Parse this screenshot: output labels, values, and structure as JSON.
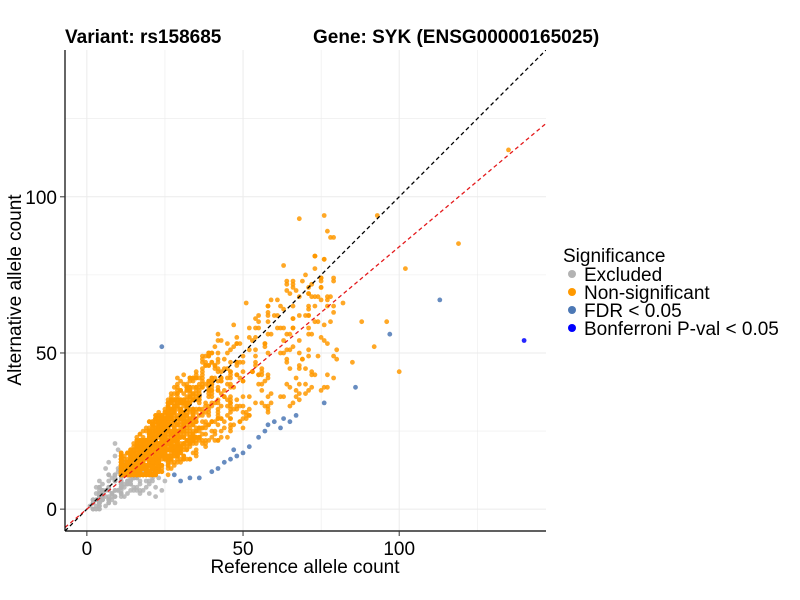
{
  "chart_data": {
    "type": "scatter",
    "title_left": "Variant: rs158685",
    "title_right": "Gene: SYK (ENSG00000165025)",
    "xlabel": "Reference allele count",
    "ylabel": "Alternative allele count",
    "xlim": [
      -7,
      147
    ],
    "ylim": [
      -7,
      147
    ],
    "xticks": [
      0,
      50,
      100
    ],
    "yticks": [
      0,
      50,
      100
    ],
    "grid": true,
    "reference_lines": [
      {
        "name": "identity line",
        "slope": 1,
        "intercept": 0,
        "color": "#000000",
        "style": "dashed"
      },
      {
        "name": "fitted ratio line",
        "slope": 0.84,
        "intercept": 0,
        "color": "#e41a1c",
        "style": "dashed"
      }
    ],
    "legend": {
      "title": "Significance",
      "position": "right",
      "items": [
        {
          "label": "Excluded",
          "color": "#b3b3b3"
        },
        {
          "label": "Non-significant",
          "color": "#ff9900"
        },
        {
          "label": "FDR < 0.05",
          "color": "#4c78b5"
        },
        {
          "label": "Bonferroni P-val < 0.05",
          "color": "#0000ff"
        }
      ]
    },
    "series": [
      {
        "name": "Excluded",
        "color": "#b3b3b3",
        "note": "dense cluster of low-count points (approx. ref 0-25, alt 0-22)",
        "points": [
          [
            2,
            3
          ],
          [
            3,
            5
          ],
          [
            4,
            2
          ],
          [
            5,
            6
          ],
          [
            6,
            4
          ],
          [
            5,
            8
          ],
          [
            7,
            7
          ],
          [
            8,
            5
          ],
          [
            9,
            9
          ],
          [
            8,
            10
          ],
          [
            10,
            6
          ],
          [
            11,
            8
          ],
          [
            12,
            11
          ],
          [
            10,
            13
          ],
          [
            13,
            9
          ],
          [
            14,
            12
          ],
          [
            12,
            15
          ],
          [
            15,
            10
          ],
          [
            16,
            13
          ],
          [
            14,
            16
          ],
          [
            17,
            8
          ],
          [
            18,
            11
          ],
          [
            19,
            14
          ],
          [
            20,
            9
          ],
          [
            21,
            12
          ],
          [
            22,
            7
          ],
          [
            23,
            10
          ],
          [
            24,
            6
          ],
          [
            25,
            9
          ],
          [
            6,
            13
          ],
          [
            7,
            15
          ],
          [
            9,
            17
          ],
          [
            11,
            17
          ],
          [
            4,
            9
          ],
          [
            3,
            7
          ],
          [
            1,
            1
          ],
          [
            2,
            0
          ],
          [
            6,
            1
          ],
          [
            8,
            3
          ],
          [
            11,
            4
          ],
          [
            13,
            5
          ],
          [
            15,
            6
          ],
          [
            18,
            6
          ],
          [
            20,
            5
          ],
          [
            16,
            17
          ],
          [
            13,
            18
          ],
          [
            10,
            19
          ],
          [
            9,
            21
          ],
          [
            22,
            4
          ],
          [
            7,
            11
          ],
          [
            5,
            3
          ],
          [
            12,
            7
          ],
          [
            14,
            8
          ],
          [
            17,
            5
          ],
          [
            19,
            7
          ]
        ]
      },
      {
        "name": "Non-significant",
        "color": "#ff9900",
        "note": "dense orange cloud along diagonal (approx. ref 10-70, alt 10-70)",
        "points": [
          [
            135,
            115
          ],
          [
            93,
            94
          ],
          [
            76,
            94
          ],
          [
            68,
            93
          ],
          [
            119,
            85
          ],
          [
            102,
            77
          ],
          [
            72,
            72
          ],
          [
            63,
            78
          ],
          [
            77,
            68
          ],
          [
            82,
            66
          ],
          [
            88,
            60
          ],
          [
            96,
            60
          ],
          [
            92,
            52
          ],
          [
            85,
            47
          ],
          [
            100,
            44
          ],
          [
            80,
            51
          ],
          [
            75,
            55
          ],
          [
            70,
            62
          ],
          [
            66,
            58
          ],
          [
            58,
            65
          ],
          [
            62,
            50
          ],
          [
            70,
            45
          ],
          [
            55,
            60
          ],
          [
            52,
            55
          ]
        ]
      },
      {
        "name": "FDR < 0.05",
        "color": "#4c78b5",
        "points": [
          [
            113,
            67
          ],
          [
            97,
            56
          ],
          [
            86,
            39
          ],
          [
            76,
            34
          ],
          [
            67,
            30
          ],
          [
            65,
            28
          ],
          [
            62,
            26
          ],
          [
            63,
            29
          ],
          [
            60,
            28
          ],
          [
            57,
            25
          ],
          [
            55,
            23
          ],
          [
            52,
            20
          ],
          [
            50,
            18
          ],
          [
            48,
            17
          ],
          [
            46,
            16
          ],
          [
            44,
            15
          ],
          [
            42,
            13
          ],
          [
            40,
            12
          ],
          [
            36,
            10
          ],
          [
            33,
            10
          ],
          [
            30,
            9
          ],
          [
            24,
            52
          ],
          [
            28,
            11
          ],
          [
            47,
            19
          ],
          [
            58,
            27
          ]
        ]
      },
      {
        "name": "Bonferroni P-val < 0.05",
        "color": "#0000ff",
        "points": [
          [
            140,
            54
          ]
        ]
      }
    ]
  }
}
